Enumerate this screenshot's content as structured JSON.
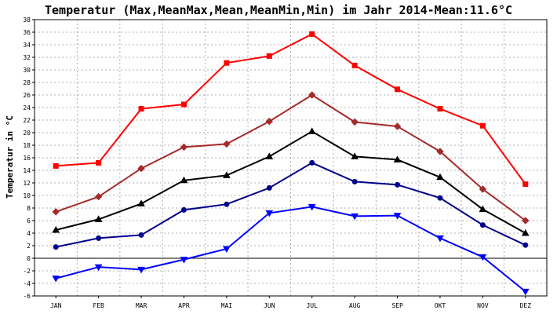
{
  "chart_data": {
    "type": "line",
    "title": "Temperatur (Max,MeanMax,Mean,MeanMin,Min) im Jahr 2014-Mean:11.6°C",
    "xlabel": "",
    "ylabel": "Temperatur in °C",
    "categories": [
      "JAN",
      "FEB",
      "MAR",
      "APR",
      "MAI",
      "JUN",
      "JUL",
      "AUG",
      "SEP",
      "OKT",
      "NOV",
      "DEZ"
    ],
    "ylim": [
      -6,
      38
    ],
    "yticks": [
      -6,
      -4,
      -2,
      0,
      2,
      4,
      6,
      8,
      10,
      12,
      14,
      16,
      18,
      20,
      22,
      24,
      26,
      28,
      30,
      32,
      34,
      36,
      38
    ],
    "grid": true,
    "series": [
      {
        "name": "Max",
        "color": "#ff0000",
        "marker": "square",
        "values": [
          14.7,
          15.2,
          23.8,
          24.5,
          31.1,
          32.2,
          35.7,
          30.7,
          26.9,
          23.8,
          21.1,
          11.8
        ]
      },
      {
        "name": "MeanMax",
        "color": "#a52a2a",
        "marker": "diamond",
        "values": [
          7.4,
          9.8,
          14.3,
          17.7,
          18.2,
          21.8,
          26.0,
          21.7,
          21.0,
          17.0,
          11.0,
          6.0
        ]
      },
      {
        "name": "Mean",
        "color": "#000000",
        "marker": "triangle-up",
        "values": [
          4.5,
          6.2,
          8.7,
          12.4,
          13.2,
          16.2,
          20.2,
          16.2,
          15.7,
          12.9,
          7.8,
          4.0
        ]
      },
      {
        "name": "MeanMin",
        "color": "#00008b",
        "marker": "circle",
        "values": [
          1.8,
          3.2,
          3.7,
          7.7,
          8.6,
          11.2,
          15.2,
          12.2,
          11.7,
          9.6,
          5.3,
          2.1
        ]
      },
      {
        "name": "Min",
        "color": "#0000ff",
        "marker": "triangle-down",
        "values": [
          -3.2,
          -1.4,
          -1.8,
          -0.2,
          1.5,
          7.2,
          8.2,
          6.7,
          6.8,
          3.2,
          0.2,
          -5.3
        ]
      }
    ]
  }
}
